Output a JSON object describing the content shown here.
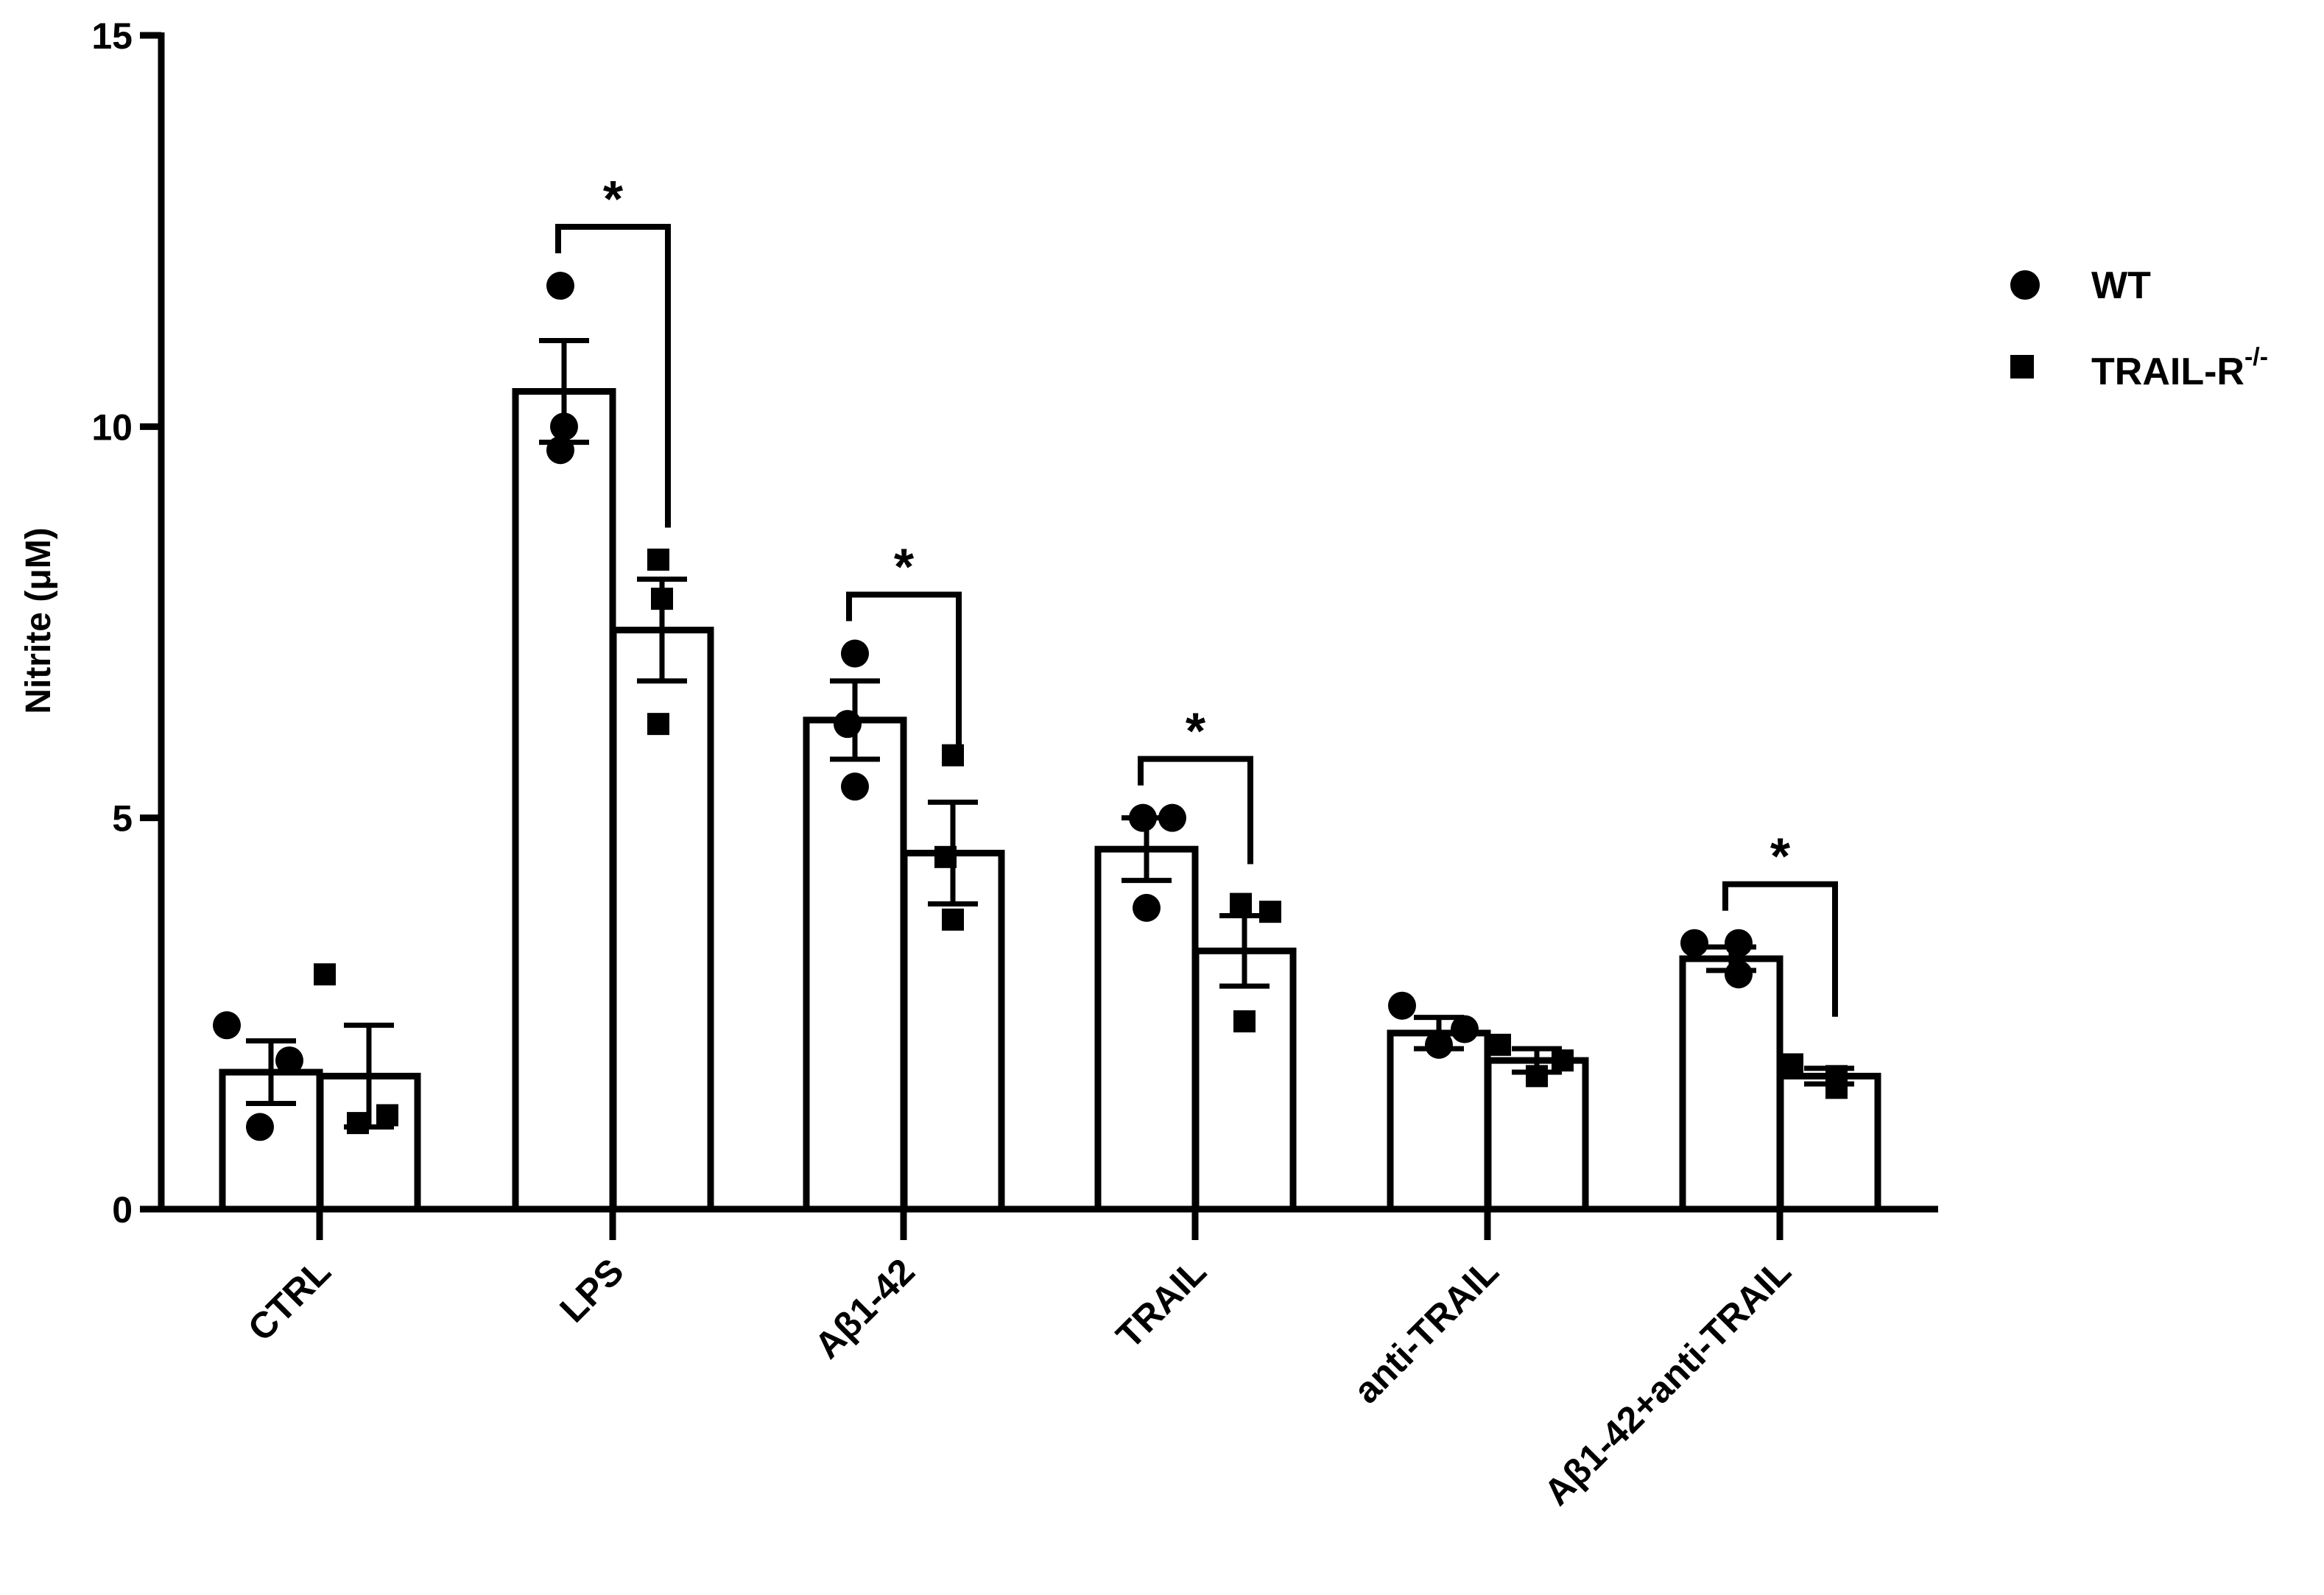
{
  "chart_data": {
    "type": "bar",
    "ylabel": "Nitrite (μM)",
    "ylim": [
      0,
      15
    ],
    "yticks": [
      0,
      5,
      10,
      15
    ],
    "categories": [
      "CTRL",
      "LPS",
      "Aβ1-42",
      "TRAIL",
      "anti-TRAIL",
      "Aβ1-42+anti-TRAIL"
    ],
    "legend": {
      "placement": "top-right"
    },
    "series": [
      {
        "name": "WT",
        "marker": "circle",
        "values": [
          1.75,
          10.45,
          6.25,
          4.6,
          2.25,
          3.2
        ],
        "sem": [
          0.4,
          0.65,
          0.5,
          0.4,
          0.2,
          0.15
        ],
        "points": [
          [
            2.35,
            1.9,
            1.05
          ],
          [
            11.8,
            10.0,
            9.7
          ],
          [
            7.1,
            6.2,
            5.4
          ],
          [
            5.0,
            5.0,
            3.85
          ],
          [
            2.6,
            2.3,
            2.1
          ],
          [
            3.4,
            3.4,
            3.0
          ]
        ]
      },
      {
        "name": "TRAIL-R",
        "name_superscript": "-/-",
        "marker": "square",
        "values": [
          1.7,
          7.4,
          4.55,
          3.3,
          1.9,
          1.7
        ],
        "sem": [
          0.65,
          0.65,
          0.65,
          0.45,
          0.15,
          0.1
        ],
        "points": [
          [
            3.0,
            1.2,
            1.1
          ],
          [
            8.3,
            7.8,
            6.2
          ],
          [
            5.8,
            4.5,
            3.7
          ],
          [
            3.9,
            3.8,
            2.4
          ],
          [
            2.1,
            1.9,
            1.7
          ],
          [
            1.85,
            1.7,
            1.55
          ]
        ]
      }
    ],
    "annotations": [
      {
        "type": "significance",
        "text": "*",
        "category": "LPS"
      },
      {
        "type": "significance",
        "text": "*",
        "category": "Aβ1-42"
      },
      {
        "type": "significance",
        "text": "*",
        "category": "TRAIL"
      },
      {
        "type": "significance",
        "text": "*",
        "category": "Aβ1-42+anti-TRAIL"
      }
    ]
  }
}
